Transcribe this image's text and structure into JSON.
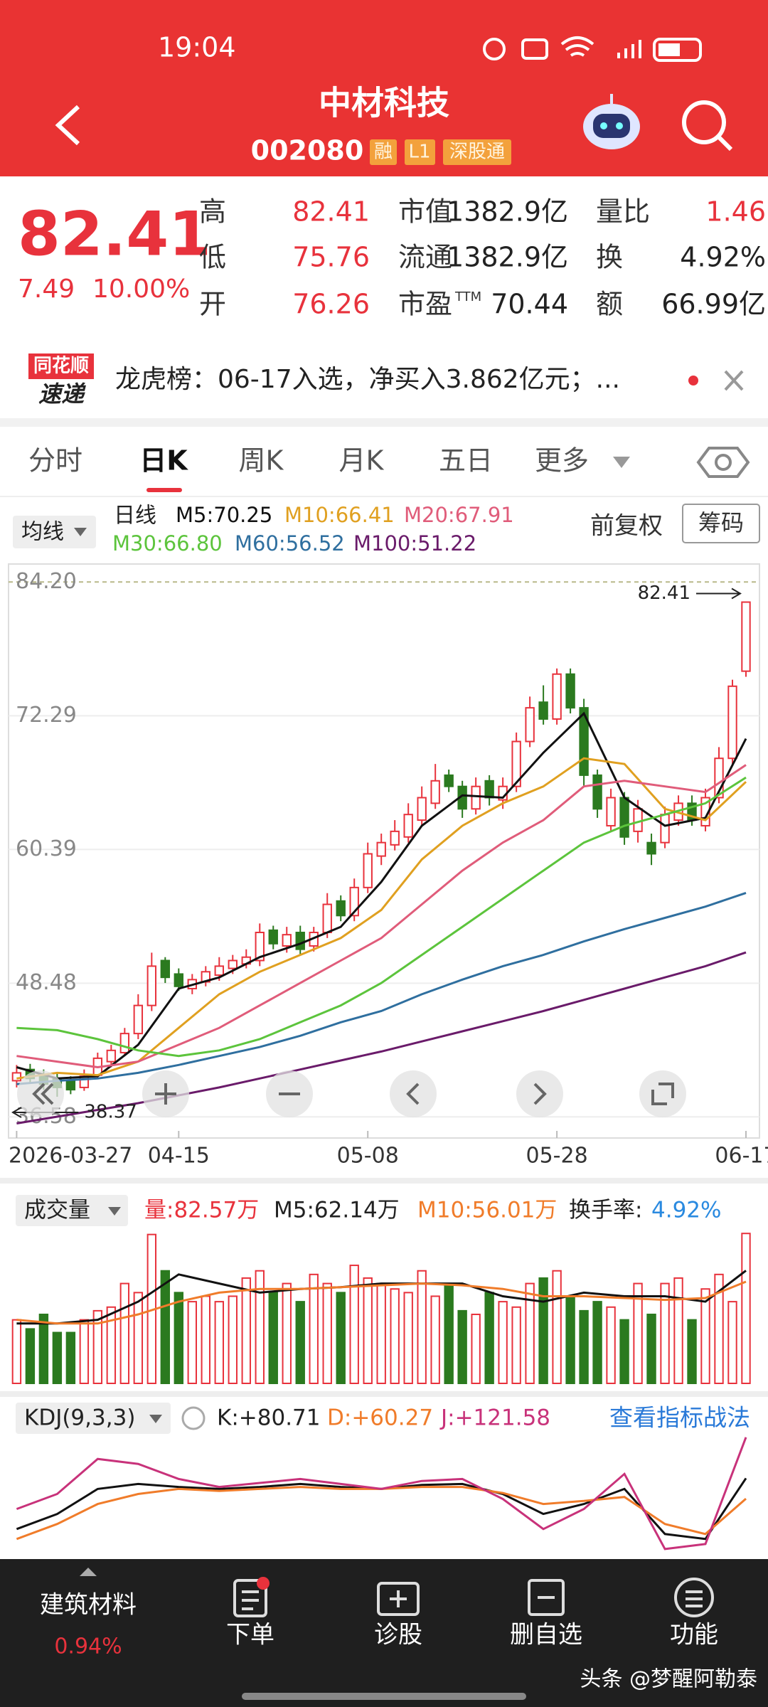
{
  "status_bar": {
    "time": "19:04"
  },
  "header": {
    "title": "中材科技",
    "code": "002080",
    "tags": [
      "融",
      "L1",
      "深股通"
    ]
  },
  "quote": {
    "price": "82.41",
    "change": "7.49",
    "change_pct": "10.00%",
    "stats": [
      [
        {
          "label": "高",
          "value": "82.41"
        },
        {
          "label": "市值",
          "value": "1382.9亿"
        },
        {
          "label": "量比",
          "value": "1.46"
        }
      ],
      [
        {
          "label": "低",
          "value": "75.76"
        },
        {
          "label": "流通",
          "value": "1382.9亿"
        },
        {
          "label": "换",
          "value": "4.92%"
        }
      ],
      [
        {
          "label": "开",
          "value": "76.26"
        },
        {
          "label": "市盈",
          "sup": "TTM",
          "value": "70.44"
        },
        {
          "label": "额",
          "value": "66.99亿"
        }
      ]
    ]
  },
  "news": {
    "logo_top": "同花顺",
    "logo_bottom": "速递",
    "text": "龙虎榜：06-17入选，净买入3.862亿元；..."
  },
  "tabs": [
    "分时",
    "日K",
    "周K",
    "月K",
    "五日",
    "更多"
  ],
  "indicator_bar": {
    "selector": "均线",
    "period": "日线",
    "adjust": "前复权",
    "chips": "筹码"
  },
  "chart_data": [
    {
      "type": "candlestick",
      "open": [
        39.8,
        40.8,
        40.3,
        40.0,
        39.8,
        39.2,
        40.3,
        41.5,
        42.3,
        44.0,
        46.5,
        50.5,
        49.3,
        48.0,
        48.6,
        49.2,
        49.8,
        50.2,
        50.5,
        53.2,
        51.8,
        53.0,
        51.8,
        53.0,
        55.8,
        54.5,
        57.0,
        59.8,
        60.8,
        61.5,
        63.0,
        64.5,
        67.0,
        66.0,
        64.0,
        66.5,
        64.8,
        66.0,
        70.0,
        73.5,
        72.0,
        76.0,
        73.0,
        67.0,
        62.5,
        65.0,
        62.0,
        61.0,
        61.0,
        63.0,
        64.5,
        62.5,
        65.0,
        68.5,
        76.26
      ],
      "close": [
        40.5,
        40.0,
        39.5,
        39.2,
        39.0,
        40.2,
        41.8,
        42.5,
        44.0,
        46.5,
        50.0,
        49.0,
        48.2,
        48.8,
        49.5,
        50.0,
        50.5,
        50.8,
        53.0,
        52.0,
        52.8,
        51.5,
        53.0,
        55.5,
        54.5,
        57.0,
        60.0,
        61.0,
        62.0,
        63.5,
        65.0,
        66.5,
        66.0,
        64.0,
        66.0,
        65.0,
        66.0,
        70.0,
        73.0,
        72.0,
        76.0,
        73.0,
        67.0,
        64.0,
        65.0,
        61.5,
        64.0,
        60.0,
        63.5,
        64.5,
        63.0,
        65.0,
        68.5,
        74.92,
        82.41
      ],
      "high": [
        41.2,
        41.3,
        40.8,
        40.5,
        40.2,
        40.8,
        42.3,
        43.0,
        44.5,
        47.5,
        51.2,
        50.8,
        49.8,
        49.3,
        50.0,
        50.8,
        51.0,
        51.5,
        53.8,
        53.6,
        53.5,
        53.6,
        53.5,
        56.5,
        56.3,
        57.8,
        61.0,
        61.8,
        63.0,
        64.5,
        66.0,
        68.0,
        67.5,
        66.5,
        66.8,
        67.0,
        66.8,
        70.8,
        74.0,
        75.0,
        76.5,
        76.5,
        73.8,
        67.5,
        65.8,
        65.5,
        64.8,
        61.8,
        64.2,
        65.2,
        65.2,
        65.8,
        69.5,
        75.5,
        82.41
      ],
      "low": [
        39.2,
        39.6,
        39.0,
        38.37,
        38.6,
        38.9,
        40.0,
        41.0,
        42.0,
        43.5,
        46.0,
        48.5,
        47.8,
        47.5,
        48.2,
        48.7,
        49.3,
        49.8,
        50.0,
        51.5,
        51.2,
        51.0,
        51.3,
        52.5,
        54.0,
        54.0,
        56.5,
        59.0,
        60.3,
        61.0,
        62.5,
        64.0,
        65.5,
        63.2,
        63.5,
        64.3,
        64.0,
        65.5,
        69.5,
        71.5,
        71.5,
        72.5,
        66.0,
        63.2,
        62.0,
        60.8,
        61.0,
        59.0,
        60.5,
        62.5,
        62.5,
        62.0,
        64.5,
        68.0,
        75.76
      ],
      "up_color": "#e8323c",
      "down_color": "#2b7a1f",
      "xlim": [
        -0.6,
        55.0
      ],
      "xticks": [
        {
          "value": 0,
          "label": "2026-03-27"
        },
        {
          "value": 12,
          "label": "04-15"
        },
        {
          "value": 26,
          "label": "05-08"
        },
        {
          "value": 40,
          "label": "05-28"
        },
        {
          "value": 54,
          "label": "06-17"
        }
      ],
      "ylim": [
        34.7,
        85.8
      ],
      "yticks": [
        {
          "value": 84.2,
          "label": "84.20"
        },
        72.29,
        60.39,
        48.48,
        36.58
      ],
      "grid": true,
      "annotations": {
        "high_label": "82.41",
        "low_label": "38.37"
      },
      "series": [
        {
          "name": "M5:70.25",
          "color": "#111111",
          "x": [
            0,
            3,
            6,
            9,
            12,
            15,
            18,
            21,
            24,
            27,
            30,
            33,
            36,
            39,
            42,
            45,
            48,
            51,
            54
          ],
          "values": [
            41.0,
            40.0,
            40.2,
            43.0,
            48.0,
            49.0,
            50.8,
            52.0,
            53.5,
            57.5,
            62.5,
            65.2,
            65.0,
            69.0,
            72.5,
            65.0,
            62.5,
            63.2,
            70.25
          ]
        },
        {
          "name": "M10:66.41",
          "color": "#e0a020",
          "x": [
            0,
            3,
            6,
            9,
            12,
            15,
            18,
            21,
            24,
            27,
            30,
            33,
            36,
            39,
            42,
            45,
            48,
            51,
            54
          ],
          "values": [
            40.0,
            40.5,
            40.3,
            41.5,
            44.5,
            47.5,
            49.5,
            51.0,
            52.5,
            55.0,
            59.5,
            62.5,
            64.5,
            66.0,
            68.5,
            68.0,
            64.0,
            63.0,
            66.41
          ]
        },
        {
          "name": "M20:67.91",
          "color": "#e05c7a",
          "x": [
            0,
            3,
            6,
            9,
            12,
            15,
            18,
            21,
            24,
            27,
            30,
            33,
            36,
            39,
            42,
            45,
            48,
            51,
            54
          ],
          "values": [
            42.0,
            41.5,
            41.0,
            41.5,
            43.0,
            44.5,
            46.5,
            48.5,
            50.5,
            52.5,
            55.5,
            58.5,
            61.0,
            63.0,
            66.0,
            66.5,
            66.0,
            65.5,
            67.91
          ]
        },
        {
          "name": "M30:66.80",
          "color": "#5cc43c",
          "x": [
            0,
            3,
            6,
            9,
            12,
            15,
            18,
            21,
            24,
            27,
            30,
            33,
            36,
            39,
            42,
            45,
            48,
            51,
            54
          ],
          "values": [
            44.5,
            44.3,
            43.5,
            42.5,
            42.0,
            42.5,
            43.5,
            45.0,
            46.5,
            48.5,
            51.0,
            53.5,
            56.0,
            58.5,
            61.0,
            62.5,
            63.5,
            64.5,
            66.8
          ]
        },
        {
          "name": "M60:56.52",
          "color": "#2f6f9f",
          "x": [
            0,
            3,
            6,
            9,
            12,
            15,
            18,
            21,
            24,
            27,
            30,
            33,
            36,
            39,
            42,
            45,
            48,
            51,
            54
          ],
          "values": [
            39.5,
            39.8,
            40.0,
            40.5,
            41.2,
            42.0,
            42.8,
            43.8,
            45.0,
            46.0,
            47.5,
            48.8,
            50.0,
            51.0,
            52.2,
            53.3,
            54.3,
            55.3,
            56.52
          ]
        },
        {
          "name": "M100:51.22",
          "color": "#6a1b6a",
          "x": [
            0,
            3,
            6,
            9,
            12,
            15,
            18,
            21,
            24,
            27,
            30,
            33,
            36,
            39,
            42,
            45,
            48,
            51,
            54
          ],
          "values": [
            36.0,
            36.6,
            37.2,
            37.8,
            38.5,
            39.2,
            40.0,
            40.8,
            41.6,
            42.4,
            43.3,
            44.2,
            45.1,
            46.0,
            47.0,
            48.0,
            49.0,
            50.0,
            51.22
          ]
        }
      ]
    },
    {
      "type": "bar",
      "title": "成交量",
      "xlim": [
        -0.6,
        55.0
      ],
      "ylim": [
        0,
        85
      ],
      "series": [
        {
          "name": "量:82.57万",
          "color": "#e8323c",
          "values": [
            35,
            30,
            38,
            28,
            28,
            35,
            40,
            42,
            55,
            50,
            82,
            62,
            50,
            45,
            48,
            45,
            48,
            58,
            62,
            50,
            55,
            45,
            60,
            55,
            50,
            65,
            58,
            55,
            52,
            50,
            62,
            48,
            55,
            40,
            38,
            50,
            45,
            42,
            55,
            58,
            62,
            48,
            40,
            45,
            42,
            35,
            55,
            38,
            55,
            58,
            35,
            52,
            60,
            45,
            82.57
          ]
        }
      ],
      "lines": [
        {
          "name": "M5:62.14万",
          "color": "#111111",
          "x": [
            0,
            3,
            6,
            9,
            12,
            15,
            18,
            21,
            24,
            27,
            30,
            33,
            36,
            39,
            42,
            45,
            48,
            51,
            54
          ],
          "values": [
            33,
            33,
            35,
            45,
            60,
            55,
            50,
            52,
            53,
            55,
            55,
            55,
            48,
            45,
            50,
            48,
            48,
            45,
            62.14
          ]
        },
        {
          "name": "M10:56.01万",
          "color": "#f07c2a",
          "x": [
            0,
            3,
            6,
            9,
            12,
            15,
            18,
            21,
            24,
            27,
            30,
            33,
            36,
            39,
            42,
            45,
            48,
            51,
            54
          ],
          "values": [
            35,
            33,
            33,
            38,
            45,
            50,
            52,
            52,
            53,
            54,
            55,
            54,
            52,
            48,
            48,
            47,
            46,
            47,
            56.01
          ]
        }
      ],
      "turnover_label": "换手率:",
      "turnover": "4.92%"
    },
    {
      "type": "line",
      "title": "KDJ(9,3,3)",
      "xlim": [
        -0.6,
        55.0
      ],
      "ylim": [
        0,
        125
      ],
      "series": [
        {
          "name": "K:+80.71",
          "color": "#111111",
          "x": [
            0,
            3,
            6,
            9,
            12,
            15,
            18,
            21,
            24,
            27,
            30,
            33,
            36,
            39,
            42,
            45,
            48,
            51,
            54
          ],
          "values": [
            30,
            45,
            70,
            75,
            72,
            70,
            72,
            75,
            72,
            70,
            74,
            75,
            65,
            45,
            55,
            70,
            25,
            20,
            80.71
          ]
        },
        {
          "name": "D:+60.27",
          "color": "#f07c2a",
          "x": [
            0,
            3,
            6,
            9,
            12,
            15,
            18,
            21,
            24,
            27,
            30,
            33,
            36,
            39,
            42,
            45,
            48,
            51,
            54
          ],
          "values": [
            20,
            35,
            55,
            65,
            70,
            68,
            70,
            72,
            70,
            70,
            72,
            72,
            66,
            55,
            58,
            62,
            35,
            25,
            60.27
          ]
        },
        {
          "name": "J:+121.58",
          "color": "#c8327a",
          "x": [
            0,
            3,
            6,
            9,
            12,
            15,
            18,
            21,
            24,
            27,
            30,
            33,
            36,
            39,
            42,
            45,
            48,
            51,
            54
          ],
          "values": [
            50,
            65,
            100,
            95,
            80,
            72,
            76,
            80,
            75,
            70,
            78,
            80,
            60,
            30,
            50,
            85,
            10,
            15,
            121.58
          ]
        }
      ],
      "link": "查看指标战法"
    }
  ],
  "bottom_nav": {
    "sector": "建筑材料",
    "sector_change": "0.94%",
    "items": [
      "下单",
      "诊股",
      "删自选",
      "功能"
    ]
  },
  "watermark": "头条 @梦醒阿勒泰"
}
